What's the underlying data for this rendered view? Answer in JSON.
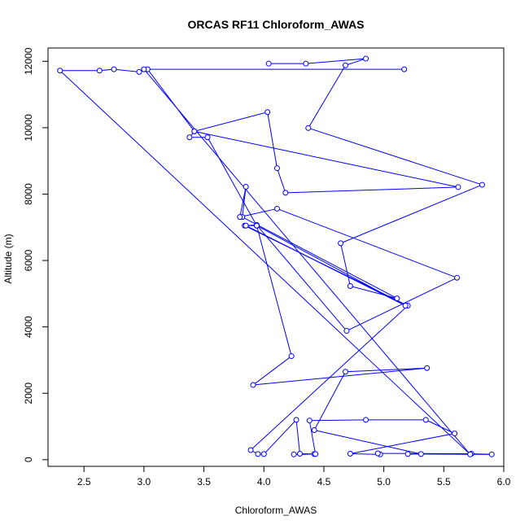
{
  "chart_data": {
    "type": "line",
    "title": "ORCAS RF11 Chloroform_AWAS",
    "xlabel": "Chloroform_AWAS",
    "ylabel": "Altitude (m)",
    "xlim": [
      2.2,
      6.0
    ],
    "ylim": [
      -200,
      12400
    ],
    "xticks": [
      2.5,
      3.0,
      3.5,
      4.0,
      4.5,
      5.0,
      5.5,
      6.0
    ],
    "xtick_labels": [
      "2.5",
      "3.0",
      "3.5",
      "4.0",
      "4.5",
      "5.0",
      "5.5",
      "6.0"
    ],
    "yticks": [
      0,
      2000,
      4000,
      6000,
      8000,
      10000,
      12000
    ],
    "ytick_labels": [
      "0",
      "2000",
      "4000",
      "6000",
      "8000",
      "10000",
      "12000"
    ],
    "grid": false,
    "legend": "none",
    "series_color": "#0000ff",
    "series": [
      {
        "name": "",
        "x": [
          4.04,
          4.35,
          4.85,
          4.68,
          4.37,
          5.82,
          4.64,
          4.72,
          5.11,
          3.82,
          3.85,
          3.8,
          4.11,
          5.61,
          4.69,
          3.94,
          3.84,
          5.2,
          3.89,
          3.95,
          4.0,
          4.27,
          4.3,
          4.42,
          4.25,
          4.43,
          4.38,
          4.85,
          5.35,
          5.59,
          4.72,
          4.97,
          4.95,
          5.73,
          5.9,
          5.2,
          5.31,
          4.42,
          4.68,
          5.36,
          3.91,
          4.23,
          3.94,
          3.85,
          5.18,
          3.94,
          3.53,
          3.38,
          3.42,
          4.03,
          4.11,
          4.18,
          5.62,
          3.42,
          3.03,
          2.96,
          2.75,
          2.63,
          2.3,
          5.72,
          3.0,
          5.17
        ],
        "y": [
          11930,
          11930,
          12080,
          11880,
          9990,
          8280,
          6520,
          5230,
          4860,
          7310,
          8220,
          7310,
          7560,
          5480,
          3880,
          7070,
          7050,
          4640,
          290,
          170,
          170,
          1200,
          180,
          170,
          160,
          170,
          1180,
          1200,
          1200,
          790,
          180,
          160,
          190,
          180,
          160,
          170,
          170,
          890,
          2650,
          2760,
          2250,
          3120,
          7050,
          7050,
          4640,
          7050,
          9710,
          9710,
          9890,
          10470,
          8780,
          8040,
          8210,
          9890,
          11760,
          11680,
          11760,
          11720,
          11720,
          160,
          11760,
          11760
        ]
      }
    ]
  }
}
